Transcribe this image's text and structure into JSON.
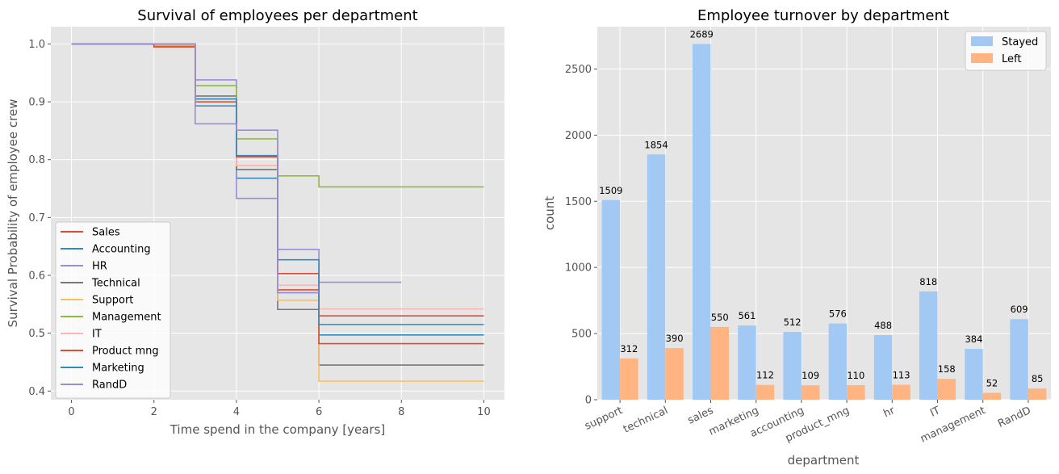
{
  "chart_data": [
    {
      "type": "line",
      "title": "Survival of employees per department",
      "xlabel": "Time spend in the company [years]",
      "ylabel": "Survival Probability of employee crew",
      "xlim": [
        -0.5,
        10.5
      ],
      "ylim": [
        0.385,
        1.03
      ],
      "xticks": [
        0,
        2,
        4,
        6,
        8,
        10
      ],
      "yticks": [
        0.4,
        0.5,
        0.6,
        0.7,
        0.8,
        0.9,
        1.0
      ],
      "grid": true,
      "legend": "lower-left",
      "step": true,
      "series": [
        {
          "name": "Sales",
          "color": "#E24A33",
          "x": [
            0,
            2,
            3,
            4,
            5,
            6,
            10
          ],
          "y": [
            1.0,
            0.997,
            0.905,
            0.805,
            0.575,
            0.53,
            0.53
          ]
        },
        {
          "name": "Accounting",
          "color": "#348ABD",
          "x": [
            0,
            2,
            3,
            4,
            5,
            6,
            10
          ],
          "y": [
            1.0,
            1.0,
            0.893,
            0.768,
            0.57,
            0.497,
            0.497
          ]
        },
        {
          "name": "HR",
          "color": "#988ED5",
          "x": [
            0,
            2,
            3,
            4,
            5,
            6,
            8
          ],
          "y": [
            1.0,
            1.0,
            0.938,
            0.733,
            0.645,
            0.588,
            0.588
          ]
        },
        {
          "name": "Technical",
          "color": "#777777",
          "x": [
            0,
            2,
            3,
            4,
            5,
            6,
            10
          ],
          "y": [
            1.0,
            0.998,
            0.91,
            0.783,
            0.541,
            0.445,
            0.445
          ]
        },
        {
          "name": "Support",
          "color": "#FBC15E",
          "x": [
            0,
            2,
            3,
            4,
            5,
            6,
            10
          ],
          "y": [
            1.0,
            0.998,
            0.9,
            0.79,
            0.557,
            0.417,
            0.417
          ]
        },
        {
          "name": "Management",
          "color": "#8EBA42",
          "x": [
            0,
            2,
            3,
            4,
            5,
            6,
            10
          ],
          "y": [
            1.0,
            1.0,
            0.928,
            0.836,
            0.772,
            0.753,
            0.753
          ]
        },
        {
          "name": "IT",
          "color": "#FFB5B8",
          "x": [
            0,
            2,
            3,
            4,
            5,
            6,
            10
          ],
          "y": [
            1.0,
            1.0,
            0.905,
            0.79,
            0.583,
            0.542,
            0.542
          ]
        },
        {
          "name": "Product mng",
          "color": "#E24A33",
          "x": [
            0,
            2,
            3,
            4,
            5,
            6,
            10
          ],
          "y": [
            1.0,
            0.995,
            0.9,
            0.805,
            0.603,
            0.482,
            0.482
          ]
        },
        {
          "name": "Marketing",
          "color": "#348ABD",
          "x": [
            0,
            2,
            3,
            4,
            5,
            6,
            10
          ],
          "y": [
            1.0,
            1.0,
            0.905,
            0.807,
            0.627,
            0.515,
            0.515
          ]
        },
        {
          "name": "RandD",
          "color": "#988ED5",
          "x": [
            0,
            2,
            3,
            4,
            5,
            6
          ],
          "y": [
            1.0,
            1.0,
            0.862,
            0.851,
            0.57,
            0.57
          ]
        }
      ]
    },
    {
      "type": "bar",
      "title": "Employee turnover by department",
      "xlabel": "department",
      "ylabel": "count",
      "ylim": [
        0,
        2820
      ],
      "yticks": [
        0,
        500,
        1000,
        1500,
        2000,
        2500
      ],
      "grid": true,
      "legend": "top-right",
      "categories": [
        "support",
        "technical",
        "sales",
        "marketing",
        "accounting",
        "product_mng",
        "hr",
        "IT",
        "management",
        "RandD"
      ],
      "series": [
        {
          "name": "Stayed",
          "color": "#A1C9F4",
          "values": [
            1509,
            1854,
            2689,
            561,
            512,
            576,
            488,
            818,
            384,
            609
          ]
        },
        {
          "name": "Left",
          "color": "#FFB482",
          "values": [
            312,
            390,
            550,
            112,
            109,
            110,
            113,
            158,
            52,
            85
          ]
        }
      ]
    }
  ]
}
